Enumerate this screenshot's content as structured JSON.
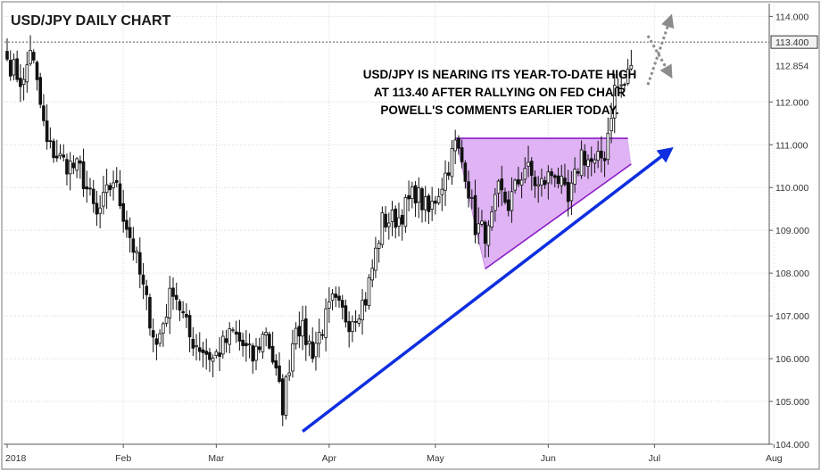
{
  "chart_data": {
    "type": "candlestick",
    "title": "USD/JPY DAILY CHART",
    "annotation": [
      "USD/JPY IS NEARING ITS YEAR-TO-DATE HIGH",
      "AT 113.40 AFTER RALLYING ON FED CHAIR",
      "POWELL'S COMMENTS EARLIER TODAY."
    ],
    "ylim": [
      104.0,
      114.3
    ],
    "y_ticks": [
      {
        "value": 104.0,
        "label": "104.000"
      },
      {
        "value": 105.0,
        "label": "105.000"
      },
      {
        "value": 106.0,
        "label": "106.000"
      },
      {
        "value": 107.0,
        "label": "107.000"
      },
      {
        "value": 108.0,
        "label": "108.000"
      },
      {
        "value": 109.0,
        "label": "109.000"
      },
      {
        "value": 110.0,
        "label": "110.000"
      },
      {
        "value": 111.0,
        "label": "111.000"
      },
      {
        "value": 112.0,
        "label": "112.000"
      },
      {
        "value": 114.0,
        "label": "114.000"
      }
    ],
    "ytd_high": {
      "value": 113.4,
      "label": "113.400"
    },
    "last_price": {
      "value": 112.854,
      "label": "112.854"
    },
    "x_ticks": [
      "2018",
      "Feb",
      "Mar",
      "Apr",
      "May",
      "Jun",
      "Jul",
      "Aug"
    ],
    "anchors": [
      {
        "i": 0,
        "v": 113.0
      },
      {
        "i": 5,
        "v": 112.4
      },
      {
        "i": 7,
        "v": 113.3
      },
      {
        "i": 12,
        "v": 111.0
      },
      {
        "i": 17,
        "v": 110.6
      },
      {
        "i": 22,
        "v": 110.4
      },
      {
        "i": 27,
        "v": 109.3
      },
      {
        "i": 32,
        "v": 110.2
      },
      {
        "i": 38,
        "v": 108.6
      },
      {
        "i": 45,
        "v": 106.3
      },
      {
        "i": 50,
        "v": 107.7
      },
      {
        "i": 55,
        "v": 106.5
      },
      {
        "i": 62,
        "v": 106.0
      },
      {
        "i": 68,
        "v": 106.6
      },
      {
        "i": 74,
        "v": 106.0
      },
      {
        "i": 78,
        "v": 106.7
      },
      {
        "i": 83,
        "v": 104.9
      },
      {
        "i": 87,
        "v": 106.9
      },
      {
        "i": 92,
        "v": 106.2
      },
      {
        "i": 98,
        "v": 107.3
      },
      {
        "i": 103,
        "v": 106.9
      },
      {
        "i": 108,
        "v": 107.4
      },
      {
        "i": 113,
        "v": 109.2
      },
      {
        "i": 118,
        "v": 109.3
      },
      {
        "i": 123,
        "v": 109.9
      },
      {
        "i": 127,
        "v": 109.4
      },
      {
        "i": 132,
        "v": 110.3
      },
      {
        "i": 135,
        "v": 111.0
      },
      {
        "i": 138,
        "v": 110.4
      },
      {
        "i": 141,
        "v": 109.1
      },
      {
        "i": 145,
        "v": 108.9
      },
      {
        "i": 148,
        "v": 109.9
      },
      {
        "i": 151,
        "v": 109.6
      },
      {
        "i": 156,
        "v": 110.5
      },
      {
        "i": 160,
        "v": 110.0
      },
      {
        "i": 165,
        "v": 110.4
      },
      {
        "i": 169,
        "v": 109.6
      },
      {
        "i": 173,
        "v": 110.8
      },
      {
        "i": 177,
        "v": 110.5
      },
      {
        "i": 180,
        "v": 110.8
      },
      {
        "i": 183,
        "v": 112.3
      },
      {
        "i": 186,
        "v": 112.4
      },
      {
        "i": 188,
        "v": 112.854
      }
    ],
    "triangle_points": [
      {
        "i": 135,
        "v": 111.15
      },
      {
        "i": 187,
        "v": 111.15
      },
      {
        "i": 188,
        "v": 110.55
      },
      {
        "i": 144,
        "v": 108.1
      }
    ],
    "trendline": [
      {
        "i": 89,
        "v": 104.3
      },
      {
        "i": 200,
        "v": 110.9
      }
    ],
    "projection_arrows": [
      {
        "from": {
          "i": 193,
          "v": 112.4
        },
        "to": {
          "i": 200,
          "v": 114.0
        }
      },
      {
        "from": {
          "i": 193,
          "v": 113.55
        },
        "to": {
          "i": 200,
          "v": 112.6
        }
      }
    ],
    "colors": {
      "candle_up": "#ffffff",
      "candle_down": "#111111",
      "triangle_fill": "#d9a6f2",
      "triangle_line": "#8a1cc7",
      "trendline": "#0e2ee0",
      "arrow": "#8c8c8c",
      "grid": "#d8d8d8",
      "ytd_line": "#555555"
    }
  }
}
